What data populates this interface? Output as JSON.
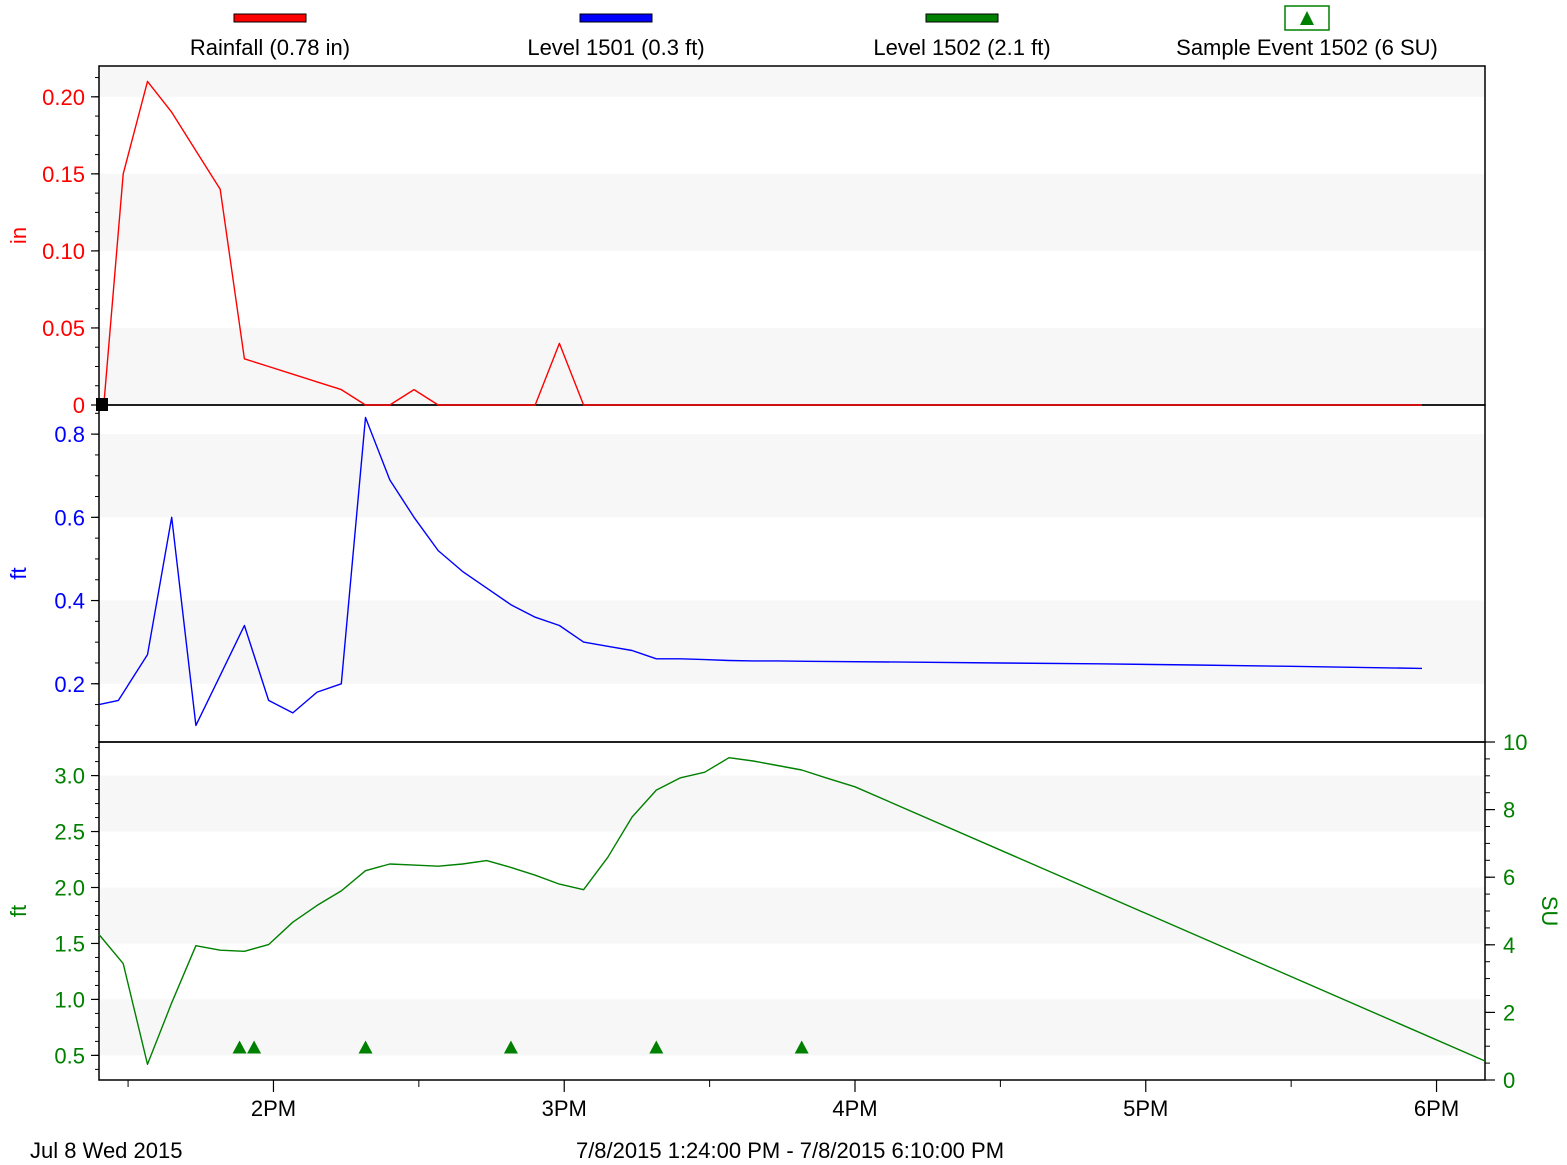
{
  "colors": {
    "rainfall": "#ff0000",
    "level1501": "#0000ff",
    "level1502": "#008000",
    "axis": "#000000",
    "band": "#f7f7f7"
  },
  "legend": [
    {
      "label": "Rainfall (0.78 in)",
      "color": "#ff0000",
      "icon": "line-swatch"
    },
    {
      "label": "Level 1501 (0.3 ft)",
      "color": "#0000ff",
      "icon": "line-swatch"
    },
    {
      "label": "Level 1502 (2.1 ft)",
      "color": "#008000",
      "icon": "line-swatch"
    },
    {
      "label": "Sample Event 1502 (6 SU)",
      "color": "#008000",
      "icon": "triangle-marker-icon"
    }
  ],
  "footer": {
    "date_label": "Jul 8 Wed 2015",
    "range_label": "7/8/2015 1:24:00 PM - 7/8/2015 6:10:00 PM"
  },
  "chart_data": [
    {
      "type": "line",
      "name": "rainfall-panel",
      "ylabel": "in",
      "ylim": [
        0,
        0.22
      ],
      "yticks": [
        "0",
        "0.05",
        "0.10",
        "0.15",
        "0.20"
      ],
      "x_units": "minutes since 12:00 PM",
      "xlim": [
        84,
        370
      ],
      "series": [
        {
          "name": "Rainfall (0.78 in)",
          "color": "#ff0000",
          "x": [
            85,
            89,
            94,
            99,
            104,
            109,
            114,
            119,
            124,
            129,
            134,
            139,
            144,
            149,
            154,
            159,
            164,
            169,
            174,
            179,
            184,
            189,
            194,
            200,
            250,
            300,
            350,
            357
          ],
          "y": [
            0,
            0.15,
            0.21,
            0.19,
            0.165,
            0.14,
            0.03,
            0.025,
            0.02,
            0.015,
            0.01,
            0.0,
            0.0,
            0.01,
            0.0,
            0.0,
            0.0,
            0.0,
            0.0,
            0.04,
            0.0,
            0.0,
            0.0,
            0.0,
            0.0,
            0.0,
            0.0,
            0.0
          ]
        }
      ]
    },
    {
      "type": "line",
      "name": "level-1501-panel",
      "ylabel": "ft",
      "ylim": [
        0.06,
        0.87
      ],
      "yticks": [
        "0.2",
        "0.4",
        "0.6",
        "0.8"
      ],
      "x_units": "minutes since 12:00 PM",
      "xlim": [
        84,
        370
      ],
      "series": [
        {
          "name": "Level 1501 (0.3 ft)",
          "color": "#0000ff",
          "x": [
            84,
            88,
            94,
            99,
            104,
            109,
            114,
            119,
            124,
            129,
            134,
            139,
            144,
            149,
            154,
            159,
            164,
            169,
            174,
            179,
            184,
            189,
            194,
            199,
            204,
            209,
            214,
            219,
            224,
            230,
            250,
            270,
            290,
            310,
            330,
            357
          ],
          "y": [
            0.15,
            0.16,
            0.27,
            0.6,
            0.1,
            0.22,
            0.34,
            0.16,
            0.13,
            0.18,
            0.2,
            0.84,
            0.69,
            0.6,
            0.52,
            0.47,
            0.43,
            0.39,
            0.36,
            0.34,
            0.3,
            0.29,
            0.28,
            0.26,
            0.26,
            0.258,
            0.256,
            0.255,
            0.255,
            0.254,
            0.252,
            0.25,
            0.248,
            0.245,
            0.242,
            0.237
          ]
        }
      ]
    },
    {
      "type": "line",
      "name": "level-1502-panel",
      "ylabel": "ft",
      "ylabel_right": "SU",
      "ylim": [
        0.28,
        3.3
      ],
      "y2lim": [
        0,
        10
      ],
      "yticks": [
        "0.5",
        "1.0",
        "1.5",
        "2.0",
        "2.5",
        "3.0"
      ],
      "y2ticks": [
        "0",
        "2",
        "4",
        "6",
        "8",
        "10"
      ],
      "x_units": "minutes since 12:00 PM",
      "xlim": [
        84,
        370
      ],
      "xticks": [
        "2PM",
        "3PM",
        "4PM",
        "5PM",
        "6PM"
      ],
      "xtick_values": [
        120,
        180,
        240,
        300,
        360
      ],
      "series": [
        {
          "name": "Level 1502 (2.1 ft)",
          "color": "#008000",
          "x": [
            84,
            89,
            94,
            99,
            104,
            109,
            114,
            119,
            124,
            129,
            134,
            139,
            144,
            149,
            154,
            159,
            164,
            169,
            174,
            179,
            184,
            189,
            194,
            199,
            204,
            209,
            214,
            219,
            224,
            229,
            234,
            240,
            370
          ],
          "y": [
            1.58,
            1.32,
            0.42,
            0.97,
            1.48,
            1.44,
            1.43,
            1.49,
            1.69,
            1.84,
            1.97,
            2.15,
            2.21,
            2.2,
            2.19,
            2.21,
            2.24,
            2.18,
            2.11,
            2.03,
            1.98,
            2.27,
            2.63,
            2.87,
            2.98,
            3.03,
            3.16,
            3.13,
            3.09,
            3.05,
            2.98,
            2.9,
            0.45
          ]
        },
        {
          "name": "Sample Event 1502 (6 SU)",
          "color": "#008000",
          "type": "scatter",
          "marker": "triangle",
          "x": [
            113,
            116,
            139,
            169,
            199,
            229
          ],
          "y": [
            0.57,
            0.57,
            0.57,
            0.57,
            0.57,
            0.57
          ]
        }
      ]
    }
  ]
}
